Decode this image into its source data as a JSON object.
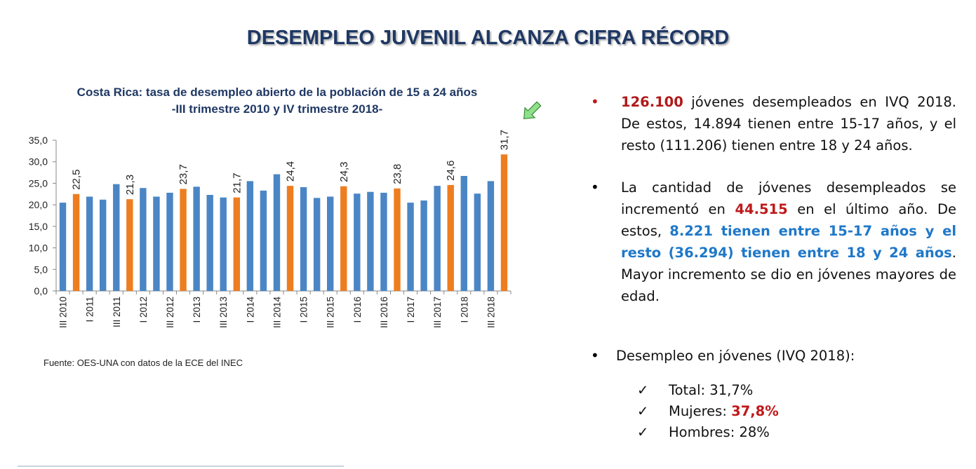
{
  "header": {
    "title": "DESEMPLEO JUVENIL ALCANZA CIFRA RÉCORD"
  },
  "chart_data": {
    "type": "bar",
    "title": "Costa Rica: tasa de desempleo abierto de la población de 15 a 24 años",
    "subtitle": "-III trimestre 2010 y IV trimestre 2018-",
    "source": "Fuente:  OES-UNA  con datos de la ECE del INEC",
    "categories": [
      "III 2010",
      null,
      "I 2011",
      null,
      "III 2011",
      null,
      "I 2012",
      null,
      "III 2012",
      null,
      "I 2013",
      null,
      "III 2013",
      null,
      "I 2014",
      null,
      "III 2014",
      null,
      "I 2015",
      null,
      "III 2015",
      null,
      "I 2016",
      null,
      "III 2016",
      null,
      "I 2017",
      null,
      "III 2017",
      null,
      "I 2018",
      null,
      "III 2018",
      null
    ],
    "values": [
      20.5,
      22.5,
      21.9,
      21.2,
      24.8,
      21.3,
      23.9,
      21.9,
      22.8,
      23.7,
      24.2,
      22.3,
      21.7,
      21.7,
      25.5,
      23.3,
      27.1,
      24.4,
      24.1,
      21.6,
      21.9,
      24.3,
      22.6,
      23.0,
      22.8,
      23.8,
      20.5,
      21.0,
      24.4,
      24.6,
      26.7,
      22.6,
      25.5,
      31.7
    ],
    "value_labels": [
      null,
      "22,5",
      null,
      null,
      null,
      "21,3",
      null,
      null,
      null,
      "23,7",
      null,
      null,
      null,
      "21,7",
      null,
      null,
      null,
      "24,4",
      null,
      null,
      null,
      "24,3",
      null,
      null,
      null,
      "23,8",
      null,
      null,
      null,
      "24,6",
      null,
      null,
      null,
      "31,7"
    ],
    "colors": [
      "#4a86c5",
      "#ee7d1f",
      "#4a86c5",
      "#4a86c5",
      "#4a86c5",
      "#ee7d1f",
      "#4a86c5",
      "#4a86c5",
      "#4a86c5",
      "#ee7d1f",
      "#4a86c5",
      "#4a86c5",
      "#4a86c5",
      "#ee7d1f",
      "#4a86c5",
      "#4a86c5",
      "#4a86c5",
      "#ee7d1f",
      "#4a86c5",
      "#4a86c5",
      "#4a86c5",
      "#ee7d1f",
      "#4a86c5",
      "#4a86c5",
      "#4a86c5",
      "#ee7d1f",
      "#4a86c5",
      "#4a86c5",
      "#4a86c5",
      "#ee7d1f",
      "#4a86c5",
      "#4a86c5",
      "#4a86c5",
      "#ee7d1f"
    ],
    "ylim": [
      0,
      35
    ],
    "yticks": [
      {
        "value": 0,
        "label": "0,0"
      },
      {
        "value": 5,
        "label": "5,0"
      },
      {
        "value": 10,
        "label": "10,0"
      },
      {
        "value": 15,
        "label": "15,0"
      },
      {
        "value": 20,
        "label": "20,0"
      },
      {
        "value": 25,
        "label": "25,0"
      },
      {
        "value": 30,
        "label": "30,0"
      },
      {
        "value": 35,
        "label": "35,0"
      }
    ],
    "grid": false
  },
  "bullets": [
    [
      "126.100",
      " jóvenes desempleados en IVQ 2018. De estos, 14.894 tienen entre 15-17 años, y el resto (111.206) tienen entre 18 y 24 años."
    ],
    [
      "La cantidad de jóvenes desempleados se incrementó en ",
      "44.515",
      " en el último año. De estos, ",
      "8.221 tienen entre 15-17 años y el resto (36.294) tienen entre 18 y 24 años",
      ". Mayor incremento se dio en jóvenes mayores de edad."
    ],
    [
      "Desempleo en jóvenes (IVQ 2018):"
    ]
  ],
  "checks": [
    [
      "Total: 31,7%"
    ],
    [
      "Mujeres: ",
      "37,8%"
    ],
    [
      "Hombres: 28%"
    ]
  ]
}
